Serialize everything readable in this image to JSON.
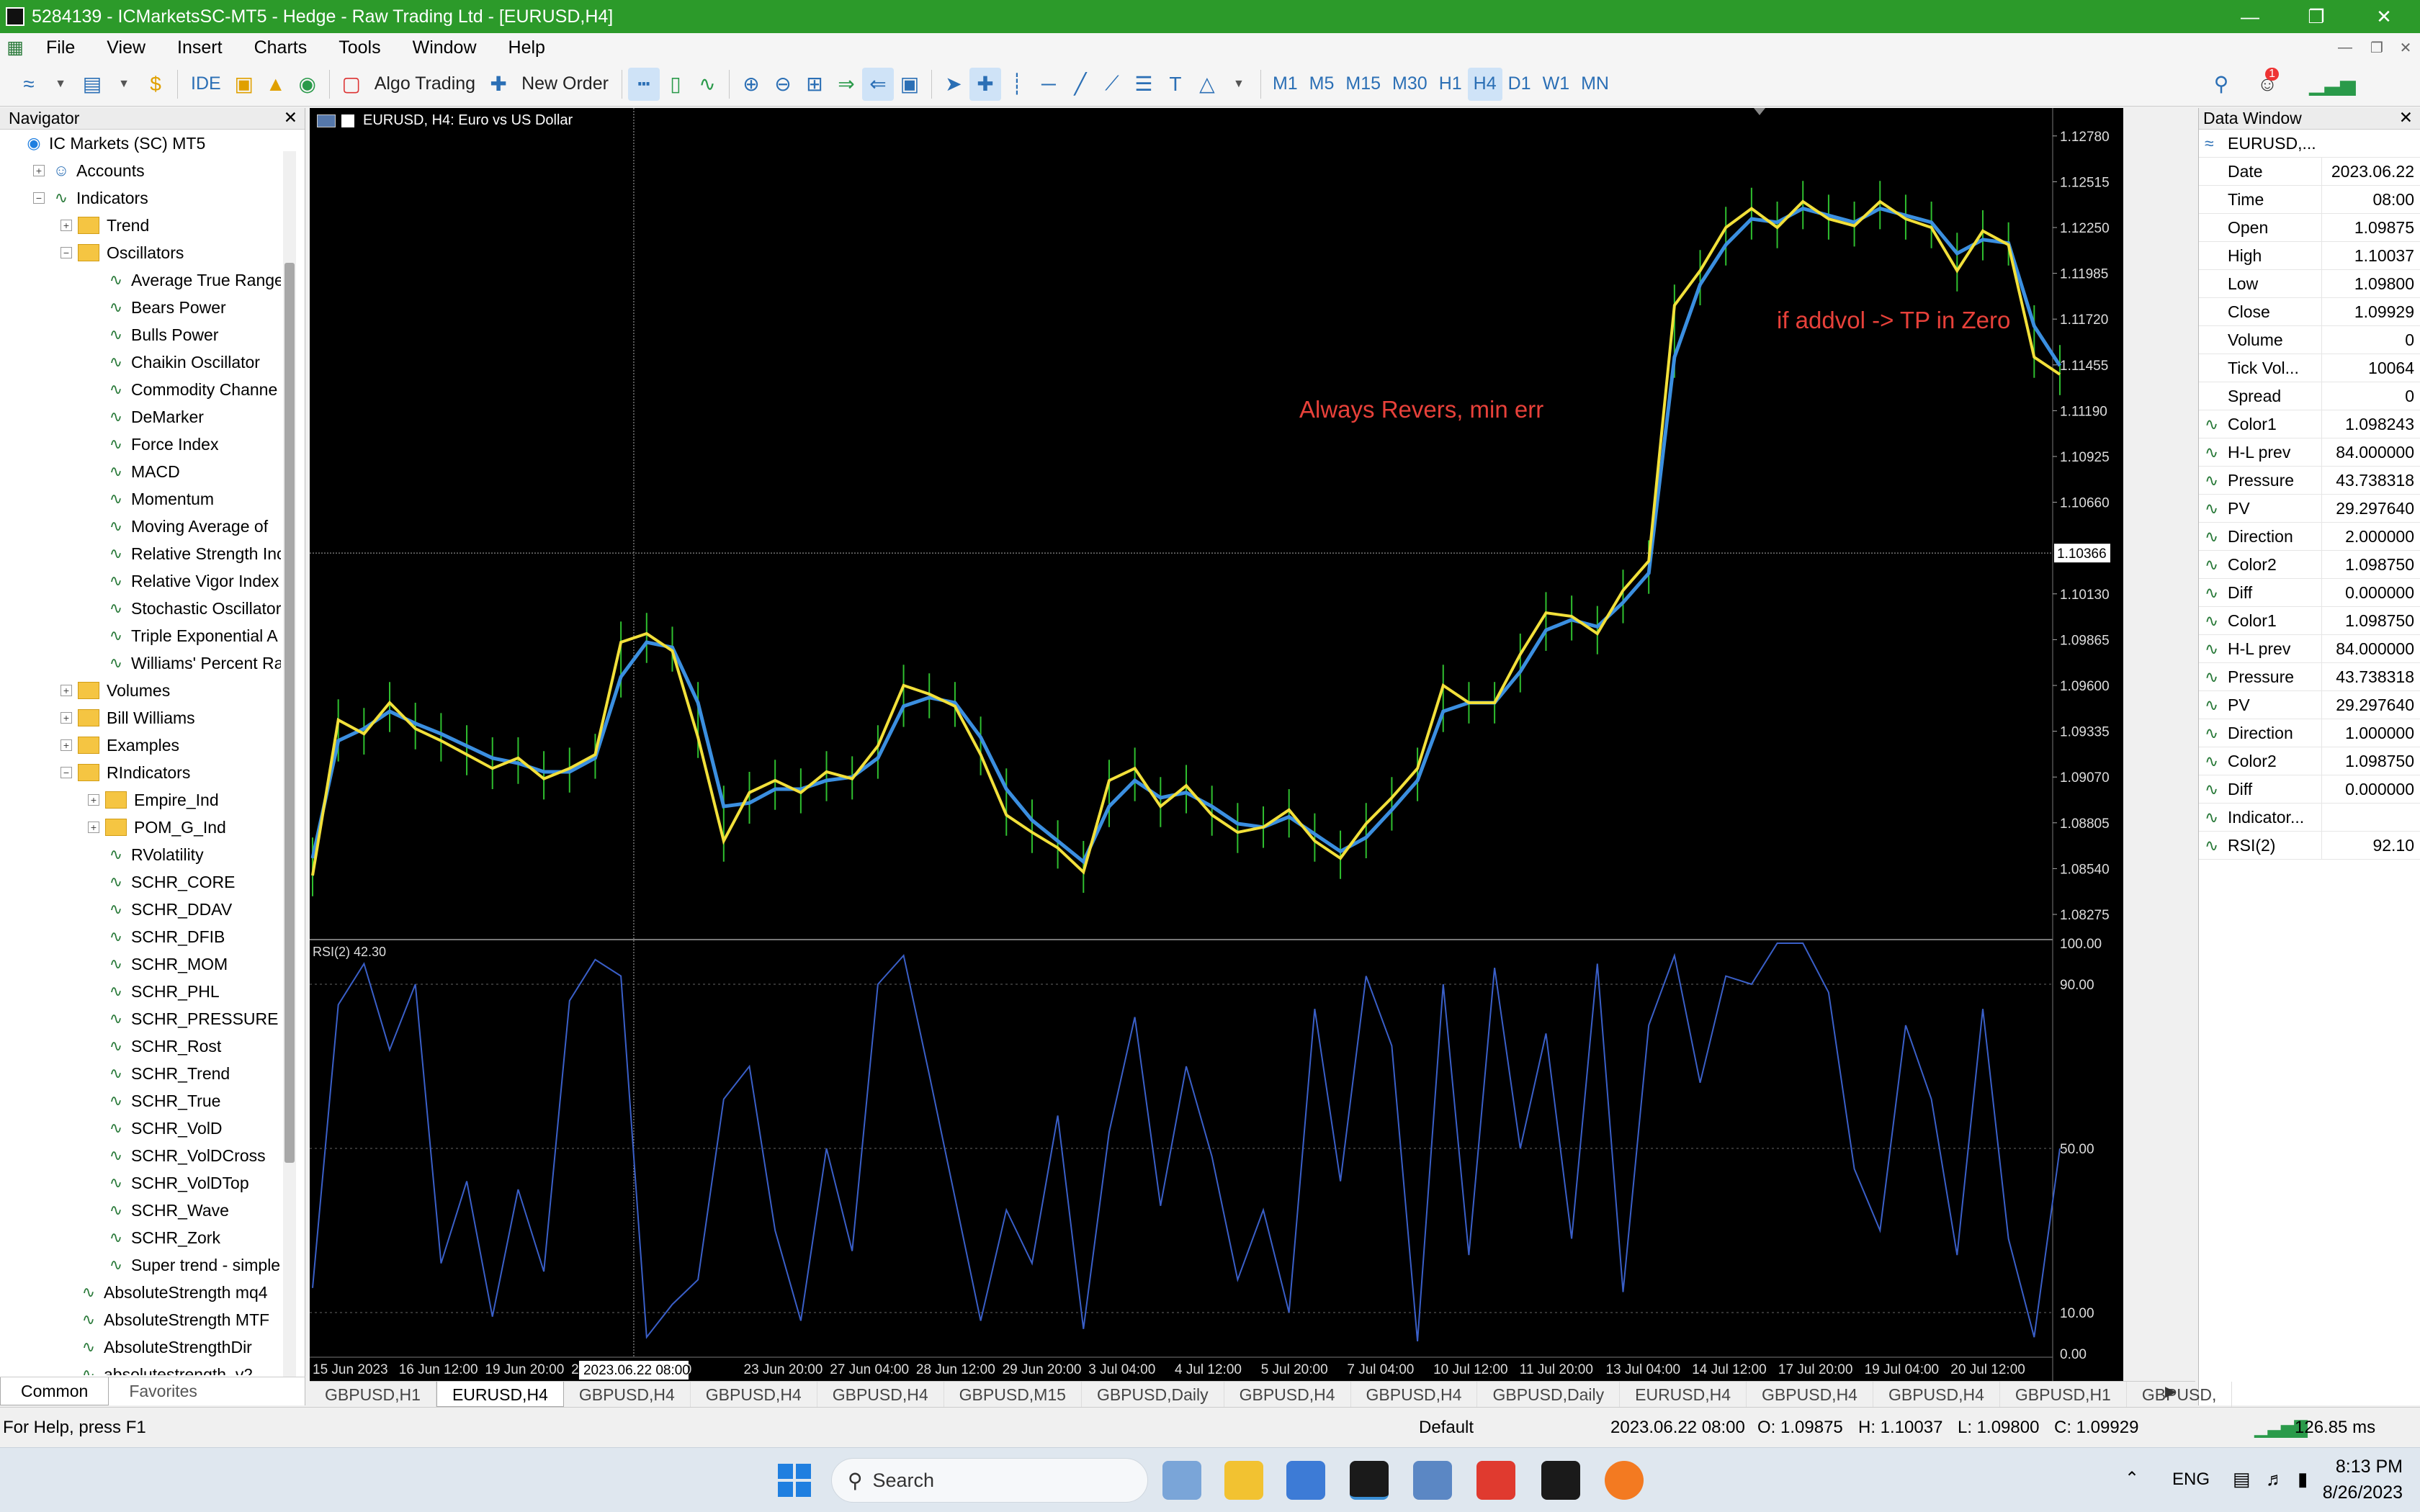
{
  "window": {
    "title": "5284139 - ICMarketsSC-MT5 - Hedge - Raw Trading Ltd - [EURUSD,H4]"
  },
  "menu": [
    "File",
    "View",
    "Insert",
    "Charts",
    "Tools",
    "Window",
    "Help"
  ],
  "toolbar": {
    "ide": "IDE",
    "algo": "Algo Trading",
    "new_order": "New Order",
    "timeframes": [
      "M1",
      "M5",
      "M15",
      "M30",
      "H1",
      "H4",
      "D1",
      "W1",
      "MN"
    ],
    "active_tf": "H4",
    "notif": "1"
  },
  "navigator": {
    "title": "Navigator",
    "items": [
      {
        "d": 0,
        "t": "IC Markets (SC) MT5",
        "k": "root",
        "pm": ""
      },
      {
        "d": 1,
        "t": "Accounts",
        "k": "acc",
        "pm": "+"
      },
      {
        "d": 1,
        "t": "Indicators",
        "k": "ind",
        "pm": "-"
      },
      {
        "d": 2,
        "t": "Trend",
        "k": "folder",
        "pm": "+"
      },
      {
        "d": 2,
        "t": "Oscillators",
        "k": "folder",
        "pm": "-"
      },
      {
        "d": 3,
        "t": "Average True Range",
        "k": "ind",
        "pm": ""
      },
      {
        "d": 3,
        "t": "Bears Power",
        "k": "ind",
        "pm": ""
      },
      {
        "d": 3,
        "t": "Bulls Power",
        "k": "ind",
        "pm": ""
      },
      {
        "d": 3,
        "t": "Chaikin Oscillator",
        "k": "ind",
        "pm": ""
      },
      {
        "d": 3,
        "t": "Commodity Channe",
        "k": "ind",
        "pm": ""
      },
      {
        "d": 3,
        "t": "DeMarker",
        "k": "ind",
        "pm": ""
      },
      {
        "d": 3,
        "t": "Force Index",
        "k": "ind",
        "pm": ""
      },
      {
        "d": 3,
        "t": "MACD",
        "k": "ind",
        "pm": ""
      },
      {
        "d": 3,
        "t": "Momentum",
        "k": "ind",
        "pm": ""
      },
      {
        "d": 3,
        "t": "Moving Average of",
        "k": "ind",
        "pm": ""
      },
      {
        "d": 3,
        "t": "Relative Strength Inc",
        "k": "ind",
        "pm": ""
      },
      {
        "d": 3,
        "t": "Relative Vigor Index",
        "k": "ind",
        "pm": ""
      },
      {
        "d": 3,
        "t": "Stochastic Oscillator",
        "k": "ind",
        "pm": ""
      },
      {
        "d": 3,
        "t": "Triple Exponential A",
        "k": "ind",
        "pm": ""
      },
      {
        "d": 3,
        "t": "Williams' Percent Ra",
        "k": "ind",
        "pm": ""
      },
      {
        "d": 2,
        "t": "Volumes",
        "k": "folder",
        "pm": "+"
      },
      {
        "d": 2,
        "t": "Bill Williams",
        "k": "folder",
        "pm": "+"
      },
      {
        "d": 2,
        "t": "Examples",
        "k": "folder",
        "pm": "+"
      },
      {
        "d": 2,
        "t": "RIndicators",
        "k": "folder",
        "pm": "-"
      },
      {
        "d": 3,
        "t": "Empire_Ind",
        "k": "folder",
        "pm": "+"
      },
      {
        "d": 3,
        "t": "POM_G_Ind",
        "k": "folder",
        "pm": "+"
      },
      {
        "d": 3,
        "t": "RVolatility",
        "k": "ind",
        "pm": ""
      },
      {
        "d": 3,
        "t": "SCHR_CORE",
        "k": "ind",
        "pm": ""
      },
      {
        "d": 3,
        "t": "SCHR_DDAV",
        "k": "ind",
        "pm": ""
      },
      {
        "d": 3,
        "t": "SCHR_DFIB",
        "k": "ind",
        "pm": ""
      },
      {
        "d": 3,
        "t": "SCHR_MOM",
        "k": "ind",
        "pm": ""
      },
      {
        "d": 3,
        "t": "SCHR_PHL",
        "k": "ind",
        "pm": ""
      },
      {
        "d": 3,
        "t": "SCHR_PRESSURE",
        "k": "ind",
        "pm": ""
      },
      {
        "d": 3,
        "t": "SCHR_Rost",
        "k": "ind",
        "pm": ""
      },
      {
        "d": 3,
        "t": "SCHR_Trend",
        "k": "ind",
        "pm": ""
      },
      {
        "d": 3,
        "t": "SCHR_True",
        "k": "ind",
        "pm": ""
      },
      {
        "d": 3,
        "t": "SCHR_VolD",
        "k": "ind",
        "pm": ""
      },
      {
        "d": 3,
        "t": "SCHR_VolDCross",
        "k": "ind",
        "pm": ""
      },
      {
        "d": 3,
        "t": "SCHR_VolDTop",
        "k": "ind",
        "pm": ""
      },
      {
        "d": 3,
        "t": "SCHR_Wave",
        "k": "ind",
        "pm": ""
      },
      {
        "d": 3,
        "t": "SCHR_Zork",
        "k": "ind",
        "pm": ""
      },
      {
        "d": 3,
        "t": "Super trend - simple",
        "k": "ind",
        "pm": ""
      },
      {
        "d": 2,
        "t": "AbsoluteStrength mq4",
        "k": "ind",
        "pm": ""
      },
      {
        "d": 2,
        "t": "AbsoluteStrength MTF",
        "k": "ind",
        "pm": ""
      },
      {
        "d": 2,
        "t": "AbsoluteStrengthDir",
        "k": "ind",
        "pm": ""
      },
      {
        "d": 2,
        "t": "absolutestrength_v2",
        "k": "ind",
        "pm": ""
      }
    ],
    "tabs": [
      "Common",
      "Favorites"
    ]
  },
  "chart": {
    "header": "EURUSD, H4:  Euro vs US Dollar",
    "annotation1": "Always Revers, min err",
    "annotation2": "if addvol -> TP in Zero",
    "price_labels": [
      "1.12780",
      "1.12515",
      "1.12250",
      "1.11985",
      "1.11720",
      "1.11455",
      "1.11190",
      "1.10925",
      "1.10660",
      "1.10130",
      "1.09865",
      "1.09600",
      "1.09335",
      "1.09070",
      "1.08805",
      "1.08540",
      "1.08275"
    ],
    "crosshair_price": "1.10366",
    "rsi_label": "RSI(2) 42.30",
    "rsi_levels": [
      "100.00",
      "90.00",
      "50.00",
      "10.00",
      "0.00"
    ],
    "time_labels": [
      "15 Jun 2023",
      "16 Jun 12:00",
      "19 Jun 20:00",
      "21 Ju",
      "22:00",
      "23 Jun 20:00",
      "27 Jun 04:00",
      "28 Jun 12:00",
      "29 Jun 20:00",
      "3 Jul 04:00",
      "4 Jul 12:00",
      "5 Jul 20:00",
      "7 Jul 04:00",
      "10 Jul 12:00",
      "11 Jul 20:00",
      "13 Jul 04:00",
      "14 Jul 12:00",
      "17 Jul 20:00",
      "19 Jul 04:00",
      "20 Jul 12:00"
    ],
    "crosshair_time": "2023.06.22 08:00"
  },
  "chart_data": {
    "type": "line",
    "symbol": "EURUSD",
    "timeframe": "H4",
    "ylim": [
      1.0815,
      1.129
    ],
    "series": [
      {
        "values": [
          1.085,
          1.094,
          1.0932,
          1.095,
          1.0935,
          1.0928,
          1.092,
          1.0912,
          1.0918,
          1.0906,
          1.0912,
          1.092,
          1.0985,
          1.099,
          1.098,
          1.093,
          1.087,
          1.0898,
          1.0905,
          1.0898,
          1.091,
          1.0906,
          1.0925,
          1.096,
          1.0955,
          1.0948,
          1.092,
          1.0885,
          1.0875,
          1.0866,
          1.0852,
          1.0905,
          1.0912,
          1.089,
          1.0902,
          1.0885,
          1.0875,
          1.0878,
          1.0888,
          1.087,
          1.086,
          1.088,
          1.0895,
          1.0912,
          1.096,
          1.095,
          1.095,
          1.0978,
          1.1002,
          1.1,
          1.099,
          1.1015,
          1.1032,
          1.118,
          1.12,
          1.1225,
          1.1236,
          1.1225,
          1.124,
          1.123,
          1.1226,
          1.124,
          1.123,
          1.1225,
          1.12,
          1.1223,
          1.1215,
          1.115,
          1.114
        ]
      },
      {
        "values": [
          1.086,
          1.0928,
          1.0935,
          1.0945,
          1.0938,
          1.0932,
          1.0925,
          1.0918,
          1.0915,
          1.091,
          1.091,
          1.0918,
          1.0965,
          1.0985,
          1.0982,
          1.095,
          1.089,
          1.0892,
          1.09,
          1.09,
          1.0905,
          1.0907,
          1.0918,
          1.0948,
          1.0953,
          1.095,
          1.093,
          1.09,
          1.0882,
          1.087,
          1.0858,
          1.089,
          1.0905,
          1.0895,
          1.0898,
          1.089,
          1.088,
          1.0878,
          1.0884,
          1.0874,
          1.0864,
          1.0872,
          1.0888,
          1.0905,
          1.0945,
          1.095,
          1.095,
          1.0968,
          1.0992,
          1.0998,
          1.0994,
          1.1008,
          1.1025,
          1.115,
          1.1192,
          1.1215,
          1.123,
          1.1228,
          1.1236,
          1.1232,
          1.1228,
          1.1236,
          1.1232,
          1.1228,
          1.121,
          1.1218,
          1.1216,
          1.1168,
          1.1145
        ]
      }
    ],
    "rsi": [
      16,
      85,
      95,
      74,
      90,
      22,
      42,
      9,
      40,
      20,
      86,
      96,
      92,
      4,
      12,
      18,
      62,
      70,
      30,
      8,
      50,
      25,
      90,
      97,
      68,
      38,
      8,
      35,
      22,
      58,
      6,
      54,
      82,
      36,
      70,
      48,
      18,
      35,
      10,
      84,
      42,
      92,
      75,
      3,
      90,
      24,
      94,
      50,
      78,
      28,
      95,
      15,
      80,
      97,
      66,
      92,
      90,
      100,
      100,
      88,
      45,
      30,
      80,
      62,
      24,
      84,
      28,
      4,
      50
    ]
  },
  "datawindow": {
    "title": "Data Window",
    "symbol": "EURUSD,...",
    "rows": [
      {
        "n": "Date",
        "v": "2023.06.22",
        "i": ""
      },
      {
        "n": "Time",
        "v": "08:00",
        "i": ""
      },
      {
        "n": "Open",
        "v": "1.09875",
        "i": ""
      },
      {
        "n": "High",
        "v": "1.10037",
        "i": ""
      },
      {
        "n": "Low",
        "v": "1.09800",
        "i": ""
      },
      {
        "n": "Close",
        "v": "1.09929",
        "i": ""
      },
      {
        "n": "Volume",
        "v": "0",
        "i": ""
      },
      {
        "n": "Tick Vol...",
        "v": "10064",
        "i": ""
      },
      {
        "n": "Spread",
        "v": "0",
        "i": ""
      },
      {
        "n": "Color1",
        "v": "1.098243",
        "i": "ind"
      },
      {
        "n": "H-L prev",
        "v": "84.000000",
        "i": "ind"
      },
      {
        "n": "Pressure",
        "v": "43.738318",
        "i": "ind"
      },
      {
        "n": "PV",
        "v": "29.297640",
        "i": "ind"
      },
      {
        "n": "Direction",
        "v": "2.000000",
        "i": "ind"
      },
      {
        "n": "Color2",
        "v": "1.098750",
        "i": "ind"
      },
      {
        "n": "Diff",
        "v": "0.000000",
        "i": "ind"
      },
      {
        "n": "Color1",
        "v": "1.098750",
        "i": "ind"
      },
      {
        "n": "H-L prev",
        "v": "84.000000",
        "i": "ind"
      },
      {
        "n": "Pressure",
        "v": "43.738318",
        "i": "ind"
      },
      {
        "n": "PV",
        "v": "29.297640",
        "i": "ind"
      },
      {
        "n": "Direction",
        "v": "1.000000",
        "i": "ind"
      },
      {
        "n": "Color2",
        "v": "1.098750",
        "i": "ind"
      },
      {
        "n": "Diff",
        "v": "0.000000",
        "i": "ind"
      },
      {
        "n": "Indicator...",
        "v": "",
        "i": "ind"
      },
      {
        "n": "RSI(2)",
        "v": "92.10",
        "i": "ind"
      }
    ]
  },
  "tabs": [
    "GBPUSD,H1",
    "EURUSD,H4",
    "GBPUSD,H4",
    "GBPUSD,H4",
    "GBPUSD,H4",
    "GBPUSD,M15",
    "GBPUSD,Daily",
    "GBPUSD,H4",
    "GBPUSD,H4",
    "GBPUSD,Daily",
    "EURUSD,H4",
    "GBPUSD,H4",
    "GBPUSD,H4",
    "GBPUSD,H1",
    "GBPUSD,"
  ],
  "active_tab": 1,
  "status": {
    "help": "For Help, press F1",
    "profile": "Default",
    "datetime": "2023.06.22 08:00",
    "o": "O: 1.09875",
    "h": "H: 1.10037",
    "l": "L: 1.09800",
    "c": "C: 1.09929",
    "ping": "126.85 ms"
  },
  "taskbar": {
    "search": "Search",
    "lang": "ENG",
    "time": "8:13 PM",
    "date": "8/26/2023"
  },
  "colors": {
    "title_bar": "#2c9a2a",
    "chart_bg": "#000000",
    "ma_fast": "#f2e03a",
    "ma_slow": "#3b8fe0",
    "candle": "#2fbf2f",
    "rsi_line": "#3a5fc8",
    "annotation": "#e8413a"
  }
}
